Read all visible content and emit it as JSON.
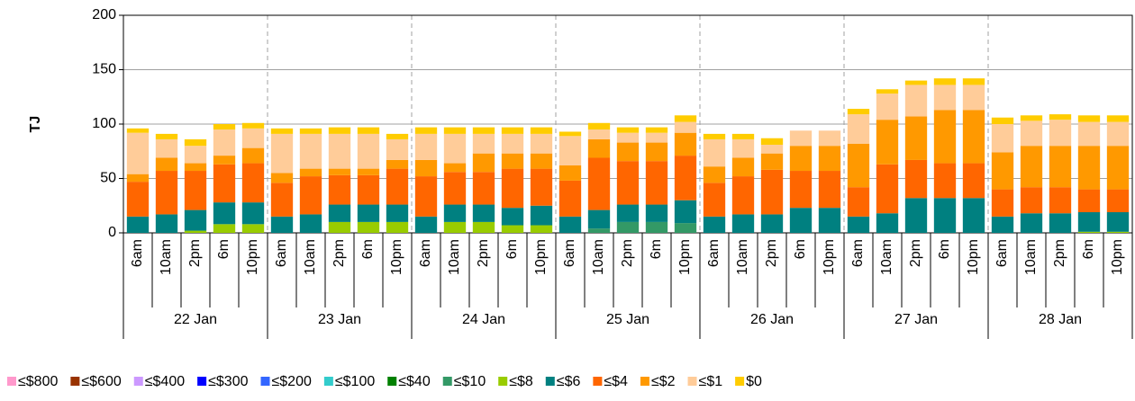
{
  "chart_data": {
    "type": "stacked_bar",
    "y_label": "TJ",
    "categories": [
      "6am",
      "10am",
      "2pm",
      "6m",
      "10pm",
      "6am",
      "10am",
      "2pm",
      "6m",
      "10pm",
      "6am",
      "10am",
      "2pm",
      "6m",
      "10pm",
      "6am",
      "10am",
      "2pm",
      "6m",
      "10pm",
      "6am",
      "10am",
      "2pm",
      "6m",
      "10pm",
      "6am",
      "10am",
      "2pm",
      "6m",
      "10pm",
      "6am",
      "10am",
      "2pm",
      "6m",
      "10pm"
    ],
    "groups": [
      "22 Jan",
      "23 Jan",
      "24 Jan",
      "25 Jan",
      "26 Jan",
      "27 Jan",
      "28 Jan"
    ],
    "ylim": [
      0,
      200
    ],
    "yticks": [
      0,
      50,
      100,
      150,
      200
    ],
    "grid": true,
    "series": [
      {
        "name": "≤$800",
        "color": "#ff99cc",
        "values": [
          0,
          0,
          0,
          0,
          0,
          0,
          0,
          0,
          0,
          0,
          0,
          0,
          0,
          0,
          0,
          0,
          0,
          0,
          0,
          0,
          0,
          0,
          0,
          0,
          0,
          0,
          0,
          0,
          0,
          0,
          0,
          0,
          0,
          0,
          0
        ]
      },
      {
        "name": "≤$600",
        "color": "#993300",
        "values": [
          0,
          0,
          0,
          0,
          0,
          0,
          0,
          0,
          0,
          0,
          0,
          0,
          0,
          0,
          0,
          0,
          0,
          0,
          0,
          0,
          0,
          0,
          0,
          0,
          0,
          0,
          0,
          0,
          0,
          0,
          0,
          0,
          0,
          0,
          0
        ]
      },
      {
        "name": "≤$400",
        "color": "#cc99ff",
        "values": [
          0,
          0,
          0,
          0,
          0,
          0,
          0,
          0,
          0,
          0,
          0,
          0,
          0,
          0,
          0,
          0,
          0,
          0,
          0,
          0,
          0,
          0,
          0,
          0,
          0,
          0,
          0,
          0,
          0,
          0,
          0,
          0,
          0,
          0,
          0
        ]
      },
      {
        "name": "≤$300",
        "color": "#0000ff",
        "values": [
          0,
          0,
          0,
          0,
          0,
          0,
          0,
          0,
          0,
          0,
          0,
          0,
          0,
          0,
          0,
          0,
          0,
          0,
          0,
          0,
          0,
          0,
          0,
          0,
          0,
          0,
          0,
          0,
          0,
          0,
          0,
          0,
          0,
          0,
          0
        ]
      },
      {
        "name": "≤$200",
        "color": "#3366ff",
        "values": [
          0,
          0,
          0,
          0,
          0,
          0,
          0,
          0,
          0,
          0,
          0,
          0,
          0,
          0,
          0,
          0,
          0,
          0,
          0,
          0,
          0,
          0,
          0,
          0,
          0,
          0,
          0,
          0,
          0,
          0,
          0,
          0,
          0,
          0,
          0
        ]
      },
      {
        "name": "≤$100",
        "color": "#33cccc",
        "values": [
          0,
          0,
          0,
          0,
          0,
          0,
          0,
          0,
          0,
          0,
          0,
          0,
          0,
          0,
          0,
          0,
          0,
          0,
          0,
          0,
          0,
          0,
          0,
          0,
          0,
          0,
          0,
          0,
          0,
          0,
          0,
          0,
          0,
          0,
          0
        ]
      },
      {
        "name": "≤$40",
        "color": "#008000",
        "values": [
          0,
          0,
          0,
          0,
          0,
          0,
          0,
          0,
          0,
          0,
          0,
          0,
          0,
          0,
          0,
          0,
          0,
          0,
          0,
          0,
          0,
          0,
          0,
          0,
          0,
          0,
          0,
          0,
          0,
          0,
          0,
          0,
          0,
          0,
          0
        ]
      },
      {
        "name": "≤$10",
        "color": "#339966",
        "values": [
          0,
          0,
          0,
          0,
          0,
          0,
          0,
          0,
          0,
          0,
          0,
          0,
          0,
          0,
          0,
          0,
          4,
          10,
          10,
          9,
          0,
          0,
          0,
          0,
          0,
          0,
          0,
          0,
          0,
          0,
          0,
          0,
          0,
          0,
          0
        ]
      },
      {
        "name": "≤$8",
        "color": "#99cc00",
        "values": [
          0,
          0,
          2,
          8,
          8,
          0,
          0,
          10,
          10,
          10,
          0,
          10,
          10,
          7,
          7,
          0,
          0,
          0,
          0,
          0,
          0,
          0,
          0,
          0,
          0,
          0,
          0,
          0,
          0,
          0,
          0,
          0,
          0,
          1,
          1
        ]
      },
      {
        "name": "≤$6",
        "color": "#008080",
        "values": [
          15,
          17,
          19,
          20,
          20,
          15,
          17,
          16,
          16,
          16,
          15,
          16,
          16,
          16,
          18,
          15,
          17,
          16,
          16,
          21,
          15,
          17,
          17,
          23,
          23,
          15,
          18,
          32,
          32,
          32,
          15,
          18,
          18,
          18,
          18
        ]
      },
      {
        "name": "≤$4",
        "color": "#ff6600",
        "values": [
          32,
          40,
          36,
          35,
          36,
          31,
          35,
          27,
          27,
          33,
          37,
          30,
          30,
          36,
          34,
          33,
          48,
          40,
          40,
          41,
          31,
          35,
          41,
          34,
          34,
          27,
          45,
          35,
          32,
          32,
          25,
          24,
          24,
          21,
          21
        ]
      },
      {
        "name": "≤$2",
        "color": "#ff9900",
        "values": [
          7,
          12,
          7,
          8,
          14,
          9,
          7,
          6,
          6,
          8,
          15,
          8,
          17,
          14,
          14,
          14,
          17,
          17,
          17,
          21,
          15,
          17,
          15,
          23,
          23,
          40,
          41,
          40,
          49,
          49,
          34,
          38,
          38,
          40,
          40
        ]
      },
      {
        "name": "≤$1",
        "color": "#ffcc99",
        "values": [
          38,
          17,
          16,
          24,
          18,
          36,
          32,
          32,
          32,
          19,
          24,
          27,
          18,
          18,
          18,
          27,
          9,
          9,
          9,
          10,
          25,
          17,
          8,
          14,
          14,
          27,
          24,
          29,
          23,
          23,
          26,
          23,
          24,
          22,
          22
        ]
      },
      {
        "name": "$0",
        "color": "#ffcc00",
        "values": [
          4,
          5,
          6,
          5,
          5,
          5,
          5,
          6,
          6,
          5,
          6,
          6,
          6,
          6,
          6,
          4,
          6,
          5,
          5,
          6,
          5,
          5,
          6,
          0,
          0,
          5,
          4,
          4,
          6,
          6,
          6,
          5,
          5,
          6,
          6
        ]
      }
    ]
  }
}
